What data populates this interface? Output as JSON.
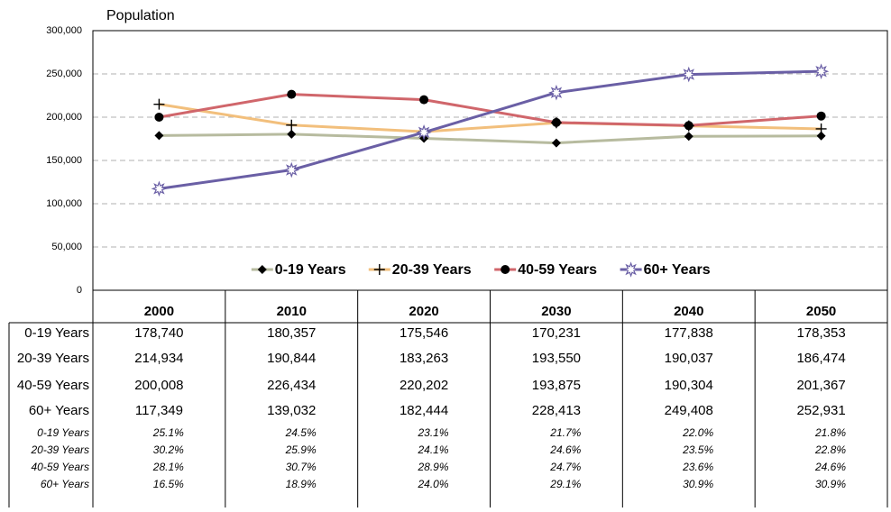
{
  "chart_data": {
    "type": "line",
    "y_label": "Population",
    "categories": [
      "2000",
      "2010",
      "2020",
      "2030",
      "2040",
      "2050"
    ],
    "ylim": [
      0,
      300000
    ],
    "yticks": [
      0,
      {
        "value": 50000,
        "label": "50,000"
      },
      {
        "value": 100000,
        "label": "100,000"
      },
      {
        "value": 150000,
        "label": "150,000"
      },
      {
        "value": 200000,
        "label": "200,000"
      },
      {
        "value": 250000,
        "label": "250,000"
      },
      {
        "value": 300000,
        "label": "300,000"
      }
    ],
    "grid": true,
    "legend": "bottom",
    "series": [
      {
        "name": "0-19 Years",
        "color": "#b7bb9f",
        "marker": "diamond",
        "values": [
          178740,
          180357,
          175546,
          170231,
          177838,
          178353
        ],
        "value_labels": [
          "178,740",
          "180,357",
          "175,546",
          "170,231",
          "177,838",
          "178,353"
        ]
      },
      {
        "name": "20-39 Years",
        "color": "#f2bf7c",
        "marker": "plus",
        "values": [
          214934,
          190844,
          183263,
          193550,
          190037,
          186474
        ],
        "value_labels": [
          "214,934",
          "190,844",
          "183,263",
          "193,550",
          "190,037",
          "186,474"
        ]
      },
      {
        "name": "40-59 Years",
        "color": "#d0666b",
        "marker": "circle",
        "values": [
          200008,
          226434,
          220202,
          193875,
          190304,
          201367
        ],
        "value_labels": [
          "200,008",
          "226,434",
          "220,202",
          "193,875",
          "190,304",
          "201,367"
        ]
      },
      {
        "name": "60+ Years",
        "color": "#6a5fa5",
        "marker": "star",
        "values": [
          117349,
          139032,
          182444,
          228413,
          249408,
          252931
        ],
        "value_labels": [
          "117,349",
          "139,032",
          "182,444",
          "228,413",
          "249,408",
          "252,931"
        ]
      }
    ],
    "share_table": {
      "rows": [
        {
          "name": "0-19 Years",
          "values": [
            25.1,
            24.5,
            23.1,
            21.7,
            22.0,
            21.8
          ],
          "value_labels": [
            "25.1%",
            "24.5%",
            "23.1%",
            "21.7%",
            "22.0%",
            "21.8%"
          ]
        },
        {
          "name": "20-39 Years",
          "values": [
            30.2,
            25.9,
            24.1,
            24.6,
            23.5,
            22.8
          ],
          "value_labels": [
            "30.2%",
            "25.9%",
            "24.1%",
            "24.6%",
            "23.5%",
            "22.8%"
          ]
        },
        {
          "name": "40-59 Years",
          "values": [
            28.1,
            30.7,
            28.9,
            24.7,
            23.6,
            24.6
          ],
          "value_labels": [
            "28.1%",
            "30.7%",
            "28.9%",
            "24.7%",
            "23.6%",
            "24.6%"
          ]
        },
        {
          "name": "60+ Years",
          "values": [
            16.5,
            18.9,
            24.0,
            29.1,
            30.9,
            30.9
          ],
          "value_labels": [
            "16.5%",
            "18.9%",
            "24.0%",
            "29.1%",
            "30.9%",
            "30.9%"
          ]
        }
      ]
    }
  }
}
